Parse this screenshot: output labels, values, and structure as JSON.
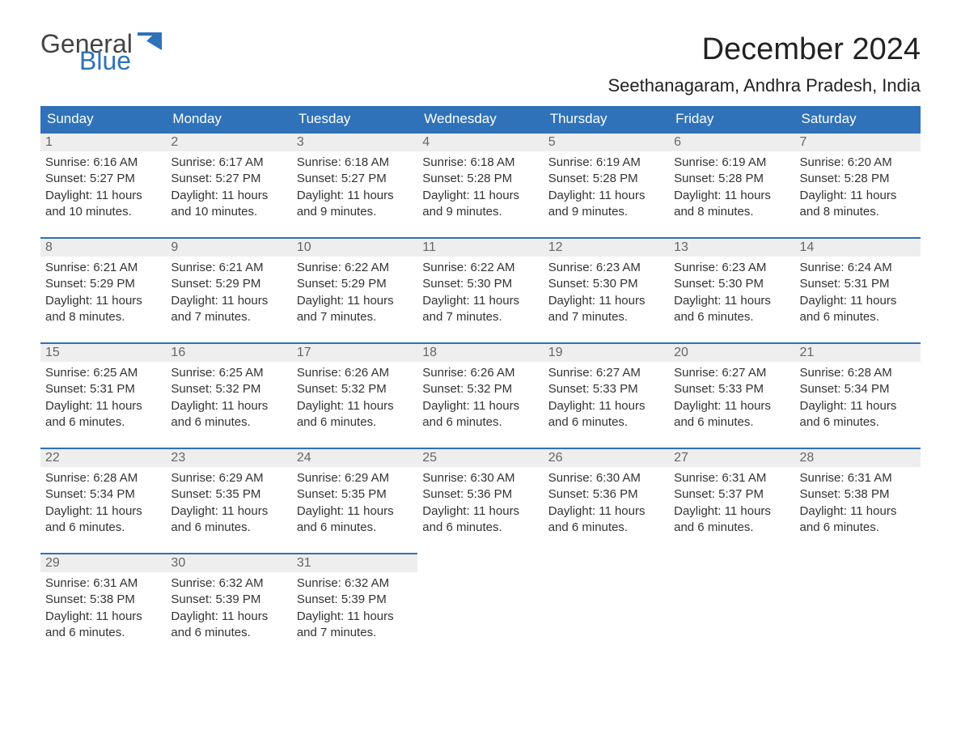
{
  "logo": {
    "general": "General",
    "blue": "Blue"
  },
  "title": "December 2024",
  "location": "Seethanagaram, Andhra Pradesh, India",
  "colors": {
    "header_bg": "#2f72b9",
    "header_text": "#ffffff",
    "daynum_bg": "#eeeeee",
    "daynum_border": "#2f72b9",
    "body_text": "#333333",
    "logo_gray": "#444444",
    "logo_blue": "#2f72b9"
  },
  "weekdays": [
    "Sunday",
    "Monday",
    "Tuesday",
    "Wednesday",
    "Thursday",
    "Friday",
    "Saturday"
  ],
  "days": [
    {
      "n": "1",
      "sunrise": "6:16 AM",
      "sunset": "5:27 PM",
      "daylight": "11 hours and 10 minutes."
    },
    {
      "n": "2",
      "sunrise": "6:17 AM",
      "sunset": "5:27 PM",
      "daylight": "11 hours and 10 minutes."
    },
    {
      "n": "3",
      "sunrise": "6:18 AM",
      "sunset": "5:27 PM",
      "daylight": "11 hours and 9 minutes."
    },
    {
      "n": "4",
      "sunrise": "6:18 AM",
      "sunset": "5:28 PM",
      "daylight": "11 hours and 9 minutes."
    },
    {
      "n": "5",
      "sunrise": "6:19 AM",
      "sunset": "5:28 PM",
      "daylight": "11 hours and 9 minutes."
    },
    {
      "n": "6",
      "sunrise": "6:19 AM",
      "sunset": "5:28 PM",
      "daylight": "11 hours and 8 minutes."
    },
    {
      "n": "7",
      "sunrise": "6:20 AM",
      "sunset": "5:28 PM",
      "daylight": "11 hours and 8 minutes."
    },
    {
      "n": "8",
      "sunrise": "6:21 AM",
      "sunset": "5:29 PM",
      "daylight": "11 hours and 8 minutes."
    },
    {
      "n": "9",
      "sunrise": "6:21 AM",
      "sunset": "5:29 PM",
      "daylight": "11 hours and 7 minutes."
    },
    {
      "n": "10",
      "sunrise": "6:22 AM",
      "sunset": "5:29 PM",
      "daylight": "11 hours and 7 minutes."
    },
    {
      "n": "11",
      "sunrise": "6:22 AM",
      "sunset": "5:30 PM",
      "daylight": "11 hours and 7 minutes."
    },
    {
      "n": "12",
      "sunrise": "6:23 AM",
      "sunset": "5:30 PM",
      "daylight": "11 hours and 7 minutes."
    },
    {
      "n": "13",
      "sunrise": "6:23 AM",
      "sunset": "5:30 PM",
      "daylight": "11 hours and 6 minutes."
    },
    {
      "n": "14",
      "sunrise": "6:24 AM",
      "sunset": "5:31 PM",
      "daylight": "11 hours and 6 minutes."
    },
    {
      "n": "15",
      "sunrise": "6:25 AM",
      "sunset": "5:31 PM",
      "daylight": "11 hours and 6 minutes."
    },
    {
      "n": "16",
      "sunrise": "6:25 AM",
      "sunset": "5:32 PM",
      "daylight": "11 hours and 6 minutes."
    },
    {
      "n": "17",
      "sunrise": "6:26 AM",
      "sunset": "5:32 PM",
      "daylight": "11 hours and 6 minutes."
    },
    {
      "n": "18",
      "sunrise": "6:26 AM",
      "sunset": "5:32 PM",
      "daylight": "11 hours and 6 minutes."
    },
    {
      "n": "19",
      "sunrise": "6:27 AM",
      "sunset": "5:33 PM",
      "daylight": "11 hours and 6 minutes."
    },
    {
      "n": "20",
      "sunrise": "6:27 AM",
      "sunset": "5:33 PM",
      "daylight": "11 hours and 6 minutes."
    },
    {
      "n": "21",
      "sunrise": "6:28 AM",
      "sunset": "5:34 PM",
      "daylight": "11 hours and 6 minutes."
    },
    {
      "n": "22",
      "sunrise": "6:28 AM",
      "sunset": "5:34 PM",
      "daylight": "11 hours and 6 minutes."
    },
    {
      "n": "23",
      "sunrise": "6:29 AM",
      "sunset": "5:35 PM",
      "daylight": "11 hours and 6 minutes."
    },
    {
      "n": "24",
      "sunrise": "6:29 AM",
      "sunset": "5:35 PM",
      "daylight": "11 hours and 6 minutes."
    },
    {
      "n": "25",
      "sunrise": "6:30 AM",
      "sunset": "5:36 PM",
      "daylight": "11 hours and 6 minutes."
    },
    {
      "n": "26",
      "sunrise": "6:30 AM",
      "sunset": "5:36 PM",
      "daylight": "11 hours and 6 minutes."
    },
    {
      "n": "27",
      "sunrise": "6:31 AM",
      "sunset": "5:37 PM",
      "daylight": "11 hours and 6 minutes."
    },
    {
      "n": "28",
      "sunrise": "6:31 AM",
      "sunset": "5:38 PM",
      "daylight": "11 hours and 6 minutes."
    },
    {
      "n": "29",
      "sunrise": "6:31 AM",
      "sunset": "5:38 PM",
      "daylight": "11 hours and 6 minutes."
    },
    {
      "n": "30",
      "sunrise": "6:32 AM",
      "sunset": "5:39 PM",
      "daylight": "11 hours and 6 minutes."
    },
    {
      "n": "31",
      "sunrise": "6:32 AM",
      "sunset": "5:39 PM",
      "daylight": "11 hours and 7 minutes."
    }
  ],
  "labels": {
    "sunrise": "Sunrise: ",
    "sunset": "Sunset: ",
    "daylight": "Daylight: "
  },
  "start_weekday": 0,
  "total_cells": 35
}
